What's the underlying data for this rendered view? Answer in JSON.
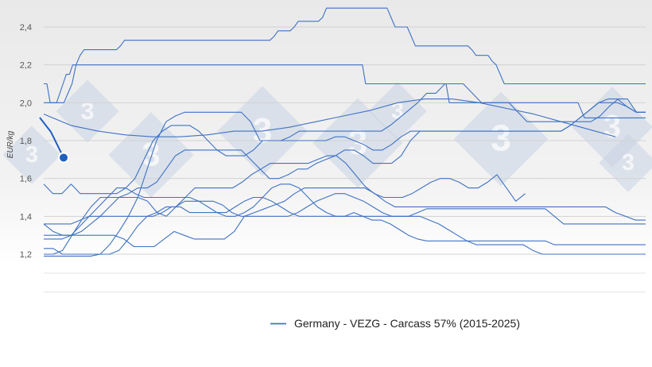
{
  "chart_data": {
    "type": "line",
    "title": "",
    "xlabel": "",
    "ylabel": "EUR/kg",
    "ylim": [
      1.15,
      2.55
    ],
    "yticks": [
      "1,2",
      "1,4",
      "1,6",
      "1,8",
      "2,0",
      "2,2",
      "2,4"
    ],
    "grid": "horizontal",
    "legend_position": "bottom",
    "legend": "Germany - VEZG - Carcass 57% (2015-2025)",
    "series_color": "#3f72c4",
    "current_value": 1.71,
    "current_marker_color": "#1f5fc1",
    "series": [
      {
        "values": [
          1.94,
          1.88,
          1.85,
          1.83,
          1.82,
          1.82,
          1.83,
          1.85,
          1.85,
          1.87,
          1.9,
          1.93,
          1.96,
          2.0,
          2.02,
          2.02,
          2.0,
          1.97,
          1.94,
          1.9,
          1.86,
          1.82
        ]
      },
      {
        "values": [
          2.1,
          2.1,
          2.0,
          2.0,
          2.0,
          2.05,
          2.1,
          2.15,
          2.15,
          2.2,
          2.2,
          2.2,
          2.2,
          2.2,
          2.2,
          2.2,
          2.2,
          2.2,
          2.2,
          2.2,
          2.2,
          2.2,
          2.2,
          2.2,
          2.2,
          2.2,
          2.2,
          2.2,
          2.2,
          2.2,
          2.2,
          2.2,
          2.2,
          2.2,
          2.2,
          2.2,
          2.2,
          2.2,
          2.2,
          2.2,
          2.2,
          2.2,
          2.2,
          2.2,
          2.2,
          2.2,
          2.2,
          2.2,
          2.2,
          2.2,
          2.2,
          2.2,
          2.2,
          2.2,
          2.2,
          2.2,
          2.2,
          2.2,
          2.2,
          2.2,
          2.2,
          2.2,
          2.2,
          2.2,
          2.2,
          2.2,
          2.2,
          2.2,
          2.2,
          2.2,
          2.2,
          2.2,
          2.2,
          2.2,
          2.2,
          2.2,
          2.2,
          2.2,
          2.2,
          2.2,
          2.2,
          2.2,
          2.2,
          2.2,
          2.2,
          2.2,
          2.2,
          2.2,
          2.2,
          2.2,
          2.2,
          2.2,
          2.2,
          2.2,
          2.2,
          2.2,
          2.2,
          2.2,
          2.2,
          2.2,
          2.1,
          2.1,
          2.1,
          2.1,
          2.1,
          2.1,
          2.1,
          2.1,
          2.1,
          2.1,
          2.1,
          2.1,
          2.1,
          2.1,
          2.1,
          2.1,
          2.1,
          2.1,
          2.1,
          2.1,
          2.1,
          2.1,
          2.1,
          2.1,
          2.1,
          2.1,
          2.0,
          2.0,
          2.0,
          2.0,
          2.0,
          2.0,
          2.0,
          2.0,
          2.0,
          2.0,
          2.0,
          2.0,
          2.0,
          2.0,
          2.0,
          2.0,
          2.0,
          2.0,
          2.0,
          2.0,
          2.0,
          2.0,
          2.0,
          2.0,
          2.0,
          2.0,
          2.0,
          2.0,
          2.0,
          2.0,
          2.0,
          2.0,
          2.0,
          2.0,
          2.0,
          2.0,
          2.0,
          2.0,
          2.0,
          2.0,
          2.0,
          1.96,
          1.92,
          1.92,
          1.92,
          1.92,
          1.92,
          1.92,
          1.92,
          1.92,
          1.92,
          1.92,
          1.92,
          1.92,
          1.92,
          1.92,
          1.92,
          1.92,
          1.92,
          1.92,
          1.92,
          1.92
        ]
      },
      {
        "values": [
          2.0,
          2.0,
          2.0,
          2.0,
          2.0,
          2.0,
          2.05,
          2.1,
          2.2,
          2.25,
          2.28,
          2.28,
          2.28,
          2.28,
          2.28,
          2.28,
          2.28,
          2.28,
          2.28,
          2.3,
          2.33,
          2.33,
          2.33,
          2.33,
          2.33,
          2.33,
          2.33,
          2.33,
          2.33,
          2.33,
          2.33,
          2.33,
          2.33,
          2.33,
          2.33,
          2.33,
          2.33,
          2.33,
          2.33,
          2.33,
          2.33,
          2.33,
          2.33,
          2.33,
          2.33,
          2.33,
          2.33,
          2.33,
          2.33,
          2.33,
          2.33,
          2.33,
          2.33,
          2.33,
          2.33,
          2.33,
          2.33,
          2.35,
          2.38,
          2.38,
          2.38,
          2.38,
          2.4,
          2.43,
          2.43,
          2.43,
          2.43,
          2.43,
          2.43,
          2.45,
          2.5,
          2.5,
          2.5,
          2.5,
          2.5,
          2.5,
          2.5,
          2.5,
          2.5,
          2.5,
          2.5,
          2.5,
          2.5,
          2.5,
          2.5,
          2.5,
          2.45,
          2.4,
          2.4,
          2.4,
          2.4,
          2.35,
          2.3,
          2.3,
          2.3,
          2.3,
          2.3,
          2.3,
          2.3,
          2.3,
          2.3,
          2.3,
          2.3,
          2.3,
          2.3,
          2.3,
          2.28,
          2.25,
          2.25,
          2.25,
          2.25,
          2.22,
          2.2,
          2.15,
          2.1,
          2.1,
          2.1,
          2.1,
          2.1,
          2.1,
          2.1,
          2.1,
          2.1,
          2.1,
          2.1,
          2.1,
          2.1,
          2.1,
          2.1,
          2.1,
          2.1,
          2.1,
          2.1,
          2.1,
          2.1,
          2.1,
          2.1,
          2.1,
          2.1,
          2.1,
          2.1,
          2.1,
          2.1,
          2.1,
          2.1,
          2.1,
          2.1,
          2.1,
          2.1,
          2.1
        ]
      },
      {
        "values": [
          1.57,
          1.52,
          1.52,
          1.57,
          1.52,
          1.52,
          1.52,
          1.52,
          1.52,
          1.55,
          1.6,
          1.7,
          1.8,
          1.85,
          1.88,
          1.88,
          1.88,
          1.85,
          1.8,
          1.75,
          1.72,
          1.72,
          1.72,
          1.75,
          1.8,
          1.8,
          1.8,
          1.82,
          1.85,
          1.85,
          1.85,
          1.85,
          1.85,
          1.85,
          1.85,
          1.85,
          1.85,
          1.85,
          1.88,
          1.92,
          1.96,
          2.0,
          2.05,
          2.05,
          2.1,
          2.1,
          2.1,
          2.05,
          2.0,
          2.0,
          2.0,
          2.0,
          1.95,
          1.9,
          1.9,
          1.9,
          1.9,
          1.9,
          1.9,
          1.9,
          1.9,
          1.93,
          1.98,
          2.02,
          2.02,
          1.95,
          1.95
        ]
      },
      {
        "values": [
          1.36,
          1.32,
          1.3,
          1.3,
          1.32,
          1.36,
          1.4,
          1.45,
          1.5,
          1.52,
          1.55,
          1.55,
          1.58,
          1.65,
          1.72,
          1.75,
          1.75,
          1.75,
          1.75,
          1.75,
          1.75,
          1.75,
          1.7,
          1.65,
          1.6,
          1.6,
          1.62,
          1.65,
          1.65,
          1.68,
          1.7,
          1.72,
          1.75,
          1.75,
          1.72,
          1.68,
          1.68,
          1.68,
          1.72,
          1.8,
          1.85,
          1.85,
          1.85,
          1.85,
          1.85,
          1.85,
          1.85,
          1.85,
          1.85,
          1.85,
          1.85,
          1.85,
          1.85,
          1.85,
          1.85,
          1.85,
          1.88,
          1.92,
          1.96,
          2.0,
          2.02,
          2.02,
          1.98,
          1.95,
          1.95
        ]
      },
      {
        "values": [
          1.19,
          1.19,
          1.19,
          1.19,
          1.19,
          1.19,
          1.2,
          1.25,
          1.32,
          1.4,
          1.5,
          1.65,
          1.8,
          1.9,
          1.93,
          1.95,
          1.95,
          1.95,
          1.95,
          1.95,
          1.95,
          1.95,
          1.9,
          1.8,
          1.8,
          1.8,
          1.8,
          1.8,
          1.8,
          1.8,
          1.8,
          1.82,
          1.82,
          1.8,
          1.78,
          1.75,
          1.75,
          1.78,
          1.82,
          1.85,
          1.85,
          1.85,
          1.85,
          1.85,
          1.85,
          1.85,
          1.85,
          1.85,
          1.85,
          1.85,
          1.85,
          1.85,
          1.85,
          1.85,
          1.85,
          1.85,
          1.88,
          1.92,
          1.96,
          2.0,
          2.0,
          2.0,
          1.98,
          1.95,
          1.95
        ]
      },
      {
        "values": [
          1.2,
          1.2,
          1.22,
          1.3,
          1.38,
          1.45,
          1.5,
          1.5,
          1.5,
          1.5,
          1.5,
          1.48,
          1.42,
          1.4,
          1.45,
          1.5,
          1.55,
          1.55,
          1.55,
          1.55,
          1.55,
          1.58,
          1.62,
          1.65,
          1.68,
          1.68,
          1.68,
          1.68,
          1.68,
          1.7,
          1.72,
          1.72,
          1.68,
          1.62,
          1.56,
          1.52,
          1.5,
          1.5,
          1.5,
          1.52,
          1.55,
          1.58,
          1.6,
          1.6,
          1.58,
          1.55,
          1.55,
          1.58,
          1.62,
          1.55,
          1.48,
          1.52
        ]
      },
      {
        "values": [
          1.3,
          1.3,
          1.3,
          1.3,
          1.3,
          1.3,
          1.3,
          1.3,
          1.28,
          1.24,
          1.24,
          1.24,
          1.28,
          1.32,
          1.3,
          1.28,
          1.28,
          1.28,
          1.28,
          1.32,
          1.4,
          1.42,
          1.44,
          1.46,
          1.48,
          1.52,
          1.55,
          1.55,
          1.55,
          1.55,
          1.55,
          1.55,
          1.55,
          1.52,
          1.48,
          1.45,
          1.45,
          1.45,
          1.45,
          1.45,
          1.45,
          1.45,
          1.45,
          1.45,
          1.45,
          1.45,
          1.45,
          1.45,
          1.45,
          1.45,
          1.45,
          1.45,
          1.45,
          1.45,
          1.45,
          1.45,
          1.45,
          1.42,
          1.4,
          1.38,
          1.38
        ]
      },
      {
        "values": [
          1.28,
          1.28,
          1.28,
          1.3,
          1.35,
          1.4,
          1.45,
          1.5,
          1.55,
          1.55,
          1.52,
          1.5,
          1.5,
          1.5,
          1.5,
          1.5,
          1.5,
          1.48,
          1.45,
          1.42,
          1.4,
          1.4,
          1.42,
          1.45,
          1.5,
          1.55,
          1.57,
          1.57,
          1.55,
          1.5,
          1.45,
          1.42,
          1.4,
          1.4,
          1.42,
          1.4,
          1.38,
          1.38,
          1.36,
          1.33,
          1.3,
          1.28,
          1.27,
          1.27,
          1.27,
          1.27,
          1.27,
          1.27,
          1.27,
          1.27,
          1.27,
          1.27,
          1.27,
          1.27,
          1.27,
          1.27,
          1.25,
          1.25,
          1.25,
          1.25,
          1.25,
          1.25,
          1.25,
          1.25,
          1.25,
          1.25,
          1.25
        ]
      },
      {
        "values": [
          1.23,
          1.23,
          1.2,
          1.2,
          1.2,
          1.2,
          1.2,
          1.2,
          1.22,
          1.28,
          1.35,
          1.4,
          1.42,
          1.45,
          1.45,
          1.48,
          1.48,
          1.48,
          1.48,
          1.46,
          1.42,
          1.4,
          1.4,
          1.4,
          1.4,
          1.4,
          1.4,
          1.42,
          1.45,
          1.48,
          1.5,
          1.52,
          1.52,
          1.5,
          1.48,
          1.45,
          1.42,
          1.4,
          1.4,
          1.4,
          1.4,
          1.38,
          1.36,
          1.33,
          1.3,
          1.27,
          1.25,
          1.25,
          1.25,
          1.25,
          1.25,
          1.25,
          1.22,
          1.2,
          1.2,
          1.2,
          1.2,
          1.2,
          1.2,
          1.2,
          1.2,
          1.2,
          1.2,
          1.2,
          1.2
        ]
      },
      {
        "values": [
          1.36,
          1.36,
          1.36,
          1.36,
          1.38,
          1.4,
          1.4,
          1.4,
          1.4,
          1.4,
          1.4,
          1.4,
          1.4,
          1.42,
          1.45,
          1.45,
          1.42,
          1.42,
          1.42,
          1.42,
          1.42,
          1.45,
          1.48,
          1.5,
          1.5,
          1.48,
          1.45,
          1.42,
          1.4,
          1.4,
          1.4,
          1.4,
          1.4,
          1.4,
          1.4,
          1.4,
          1.4,
          1.4,
          1.4,
          1.4,
          1.4,
          1.42,
          1.44,
          1.44,
          1.44,
          1.44,
          1.44,
          1.44,
          1.44,
          1.44,
          1.44,
          1.44,
          1.44,
          1.44,
          1.44,
          1.44,
          1.4,
          1.36,
          1.36,
          1.36,
          1.36,
          1.36,
          1.36,
          1.36,
          1.36,
          1.36,
          1.36
        ]
      }
    ]
  }
}
